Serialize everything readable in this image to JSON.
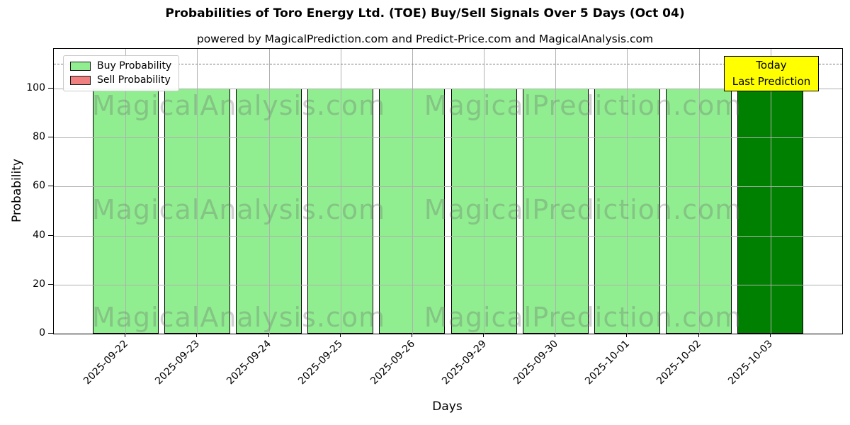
{
  "figure": {
    "title": "Probabilities of Toro Energy Ltd. (TOE) Buy/Sell Signals Over 5 Days (Oct 04)",
    "subtitle": "powered by MagicalPrediction.com and Predict-Price.com and MagicalAnalysis.com"
  },
  "legend": {
    "items": [
      {
        "label": "Buy Probability",
        "color": "#90ee90"
      },
      {
        "label": "Sell Probability",
        "color": "#f08080"
      }
    ]
  },
  "annotation_box": {
    "lines": [
      "Today",
      "Last Prediction"
    ],
    "bg_color": "#ffff00"
  },
  "watermarks": {
    "left": "MagicalAnalysis.com",
    "right": "MagicalPrediction.com"
  },
  "chart_data": {
    "type": "bar",
    "title": "Probabilities of Toro Energy Ltd. (TOE) Buy/Sell Signals Over 5 Days (Oct 04)",
    "subtitle": "powered by MagicalPrediction.com and Predict-Price.com and MagicalAnalysis.com",
    "xlabel": "Days",
    "ylabel": "Probability",
    "categories": [
      "2025-09-22",
      "2025-09-23",
      "2025-09-24",
      "2025-09-25",
      "2025-09-26",
      "2025-09-29",
      "2025-09-30",
      "2025-10-01",
      "2025-10-02",
      "2025-10-03"
    ],
    "series": [
      {
        "name": "Buy Probability",
        "values": [
          100,
          100,
          100,
          100,
          100,
          100,
          100,
          100,
          100,
          100
        ],
        "color": "#90ee90",
        "highlight_last_color": "#008000"
      },
      {
        "name": "Sell Probability",
        "values": [
          0,
          0,
          0,
          0,
          0,
          0,
          0,
          0,
          0,
          0
        ],
        "color": "#f08080"
      }
    ],
    "yticks": [
      0,
      20,
      40,
      60,
      80,
      100
    ],
    "ylim": [
      0,
      116
    ],
    "threshold_dashed_line_y": 110,
    "grid": true,
    "grid_color": "#b0b0b0",
    "bar_edge_color": "#000000",
    "legend_position": "upper left",
    "highlighted_category": "2025-10-03",
    "annotation": "Today Last Prediction"
  }
}
